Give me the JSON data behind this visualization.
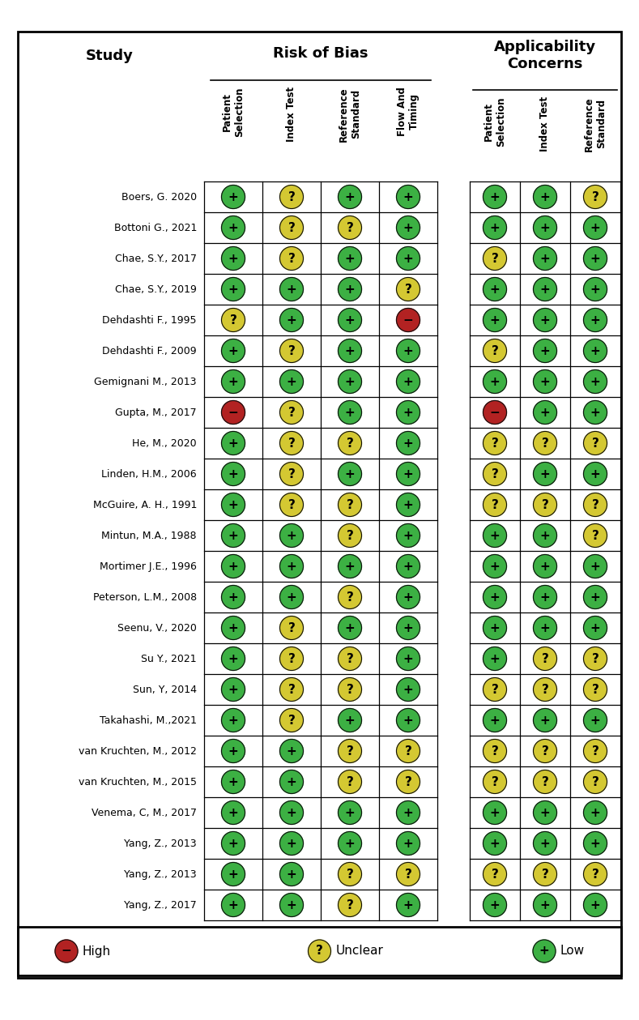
{
  "studies": [
    "Boers, G. 2020",
    "Bottoni G., 2021",
    "Chae, S.Y., 2017",
    "Chae, S.Y., 2019",
    "Dehdashti F., 1995",
    "Dehdashti F., 2009",
    "Gemignani M., 2013",
    "Gupta, M., 2017",
    "He, M., 2020",
    "Linden, H.M., 2006",
    "McGuire, A. H., 1991",
    "Mintun, M.A., 1988",
    "Mortimer J.E., 1996",
    "Peterson, L.M., 2008",
    "Seenu, V., 2020",
    "Su Y., 2021",
    "Sun, Y, 2014",
    "Takahashi, M.,2021",
    "van Kruchten, M., 2012",
    "van Kruchten, M., 2015",
    "Venema, C, M., 2017",
    "Yang, Z., 2013",
    "Yang, Z., 2013",
    "Yang, Z., 2017"
  ],
  "risk_of_bias": [
    [
      "G",
      "U",
      "G",
      "G"
    ],
    [
      "G",
      "U",
      "U",
      "G"
    ],
    [
      "G",
      "U",
      "G",
      "G"
    ],
    [
      "G",
      "G",
      "G",
      "U"
    ],
    [
      "U",
      "G",
      "G",
      "R"
    ],
    [
      "G",
      "U",
      "G",
      "G"
    ],
    [
      "G",
      "G",
      "G",
      "G"
    ],
    [
      "R",
      "U",
      "G",
      "G"
    ],
    [
      "G",
      "U",
      "U",
      "G"
    ],
    [
      "G",
      "U",
      "G",
      "G"
    ],
    [
      "G",
      "U",
      "U",
      "G"
    ],
    [
      "G",
      "G",
      "U",
      "G"
    ],
    [
      "G",
      "G",
      "G",
      "G"
    ],
    [
      "G",
      "G",
      "U",
      "G"
    ],
    [
      "G",
      "U",
      "G",
      "G"
    ],
    [
      "G",
      "U",
      "U",
      "G"
    ],
    [
      "G",
      "U",
      "U",
      "G"
    ],
    [
      "G",
      "U",
      "G",
      "G"
    ],
    [
      "G",
      "G",
      "U",
      "U"
    ],
    [
      "G",
      "G",
      "U",
      "U"
    ],
    [
      "G",
      "G",
      "G",
      "G"
    ],
    [
      "G",
      "G",
      "G",
      "G"
    ],
    [
      "G",
      "G",
      "U",
      "U"
    ],
    [
      "G",
      "G",
      "U",
      "G"
    ]
  ],
  "applicability": [
    [
      "G",
      "G",
      "U"
    ],
    [
      "G",
      "G",
      "G"
    ],
    [
      "U",
      "G",
      "G"
    ],
    [
      "G",
      "G",
      "G"
    ],
    [
      "G",
      "G",
      "G"
    ],
    [
      "U",
      "G",
      "G"
    ],
    [
      "G",
      "G",
      "G"
    ],
    [
      "R",
      "G",
      "G"
    ],
    [
      "U",
      "U",
      "U"
    ],
    [
      "U",
      "G",
      "G"
    ],
    [
      "U",
      "U",
      "U"
    ],
    [
      "G",
      "G",
      "U"
    ],
    [
      "G",
      "G",
      "G"
    ],
    [
      "G",
      "G",
      "G"
    ],
    [
      "G",
      "G",
      "G"
    ],
    [
      "G",
      "U",
      "U"
    ],
    [
      "U",
      "U",
      "U"
    ],
    [
      "G",
      "G",
      "G"
    ],
    [
      "U",
      "U",
      "U"
    ],
    [
      "U",
      "U",
      "U"
    ],
    [
      "G",
      "G",
      "G"
    ],
    [
      "G",
      "G",
      "G"
    ],
    [
      "U",
      "U",
      "U"
    ],
    [
      "G",
      "G",
      "G"
    ]
  ],
  "color_map": {
    "G": "#3cb043",
    "U": "#d4c832",
    "R": "#b22222"
  },
  "symbol_map": {
    "G": "+",
    "U": "?",
    "R": "−"
  },
  "rob_headers": [
    "Patient\nSelection",
    "Index Test",
    "Reference\nStandard",
    "Flow And\nTiming"
  ],
  "app_headers": [
    "Patient\nSelection",
    "Index Test",
    "Reference\nStandard"
  ],
  "title_rob": "Risk of Bias",
  "title_app": "Applicability\nConcerns",
  "col_study": "Study",
  "legend": [
    {
      "label": "High",
      "color": "#b22222",
      "symbol": "−"
    },
    {
      "label": "Unclear",
      "color": "#d4c832",
      "symbol": "?"
    },
    {
      "label": "Low",
      "color": "#3cb043",
      "symbol": "+"
    }
  ],
  "bg_color": "#ffffff",
  "border_color": "#000000"
}
